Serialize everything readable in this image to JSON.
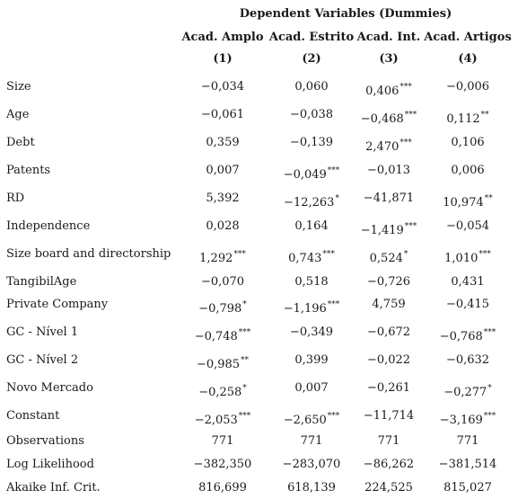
{
  "header": {
    "title": "Dependent Variables (Dummies)",
    "columns": [
      "Acad. Amplo",
      "Acad. Estrito",
      "Acad. Int.",
      "Acad. Artigos"
    ],
    "numbers": [
      "(1)",
      "(2)",
      "(3)",
      "(4)"
    ]
  },
  "rows": [
    {
      "label": "Size",
      "cells": [
        {
          "v": "−0,034",
          "s": ""
        },
        {
          "v": "0,060",
          "s": ""
        },
        {
          "v": "0,406",
          "s": "***"
        },
        {
          "v": "−0,006",
          "s": ""
        }
      ]
    },
    {
      "label": "Age",
      "cells": [
        {
          "v": "−0,061",
          "s": ""
        },
        {
          "v": "−0,038",
          "s": ""
        },
        {
          "v": "−0,468",
          "s": "***"
        },
        {
          "v": "0,112",
          "s": "**"
        }
      ]
    },
    {
      "label": "Debt",
      "cells": [
        {
          "v": "0,359",
          "s": ""
        },
        {
          "v": "−0,139",
          "s": ""
        },
        {
          "v": "2,470",
          "s": "***"
        },
        {
          "v": "0,106",
          "s": ""
        }
      ]
    },
    {
      "label": "Patents",
      "cells": [
        {
          "v": "0,007",
          "s": ""
        },
        {
          "v": "−0,049",
          "s": "***"
        },
        {
          "v": "−0,013",
          "s": ""
        },
        {
          "v": "0,006",
          "s": ""
        }
      ]
    },
    {
      "label": "RD",
      "cells": [
        {
          "v": "5,392",
          "s": ""
        },
        {
          "v": "−12,263",
          "s": "*"
        },
        {
          "v": "−41,871",
          "s": ""
        },
        {
          "v": "10,974",
          "s": "**"
        }
      ]
    },
    {
      "label": "Independence",
      "cells": [
        {
          "v": "0,028",
          "s": ""
        },
        {
          "v": "0,164",
          "s": ""
        },
        {
          "v": "−1,419",
          "s": "***"
        },
        {
          "v": "−0,054",
          "s": ""
        }
      ]
    },
    {
      "label": "Size board and directorship",
      "cells": [
        {
          "v": "1,292",
          "s": "***"
        },
        {
          "v": "0,743",
          "s": "***"
        },
        {
          "v": "0,524",
          "s": "*"
        },
        {
          "v": "1,010",
          "s": "***"
        }
      ]
    },
    {
      "label": "TangibilAge",
      "cells": [
        {
          "v": "−0,070",
          "s": ""
        },
        {
          "v": "0,518",
          "s": ""
        },
        {
          "v": "−0,726",
          "s": ""
        },
        {
          "v": "0,431",
          "s": ""
        }
      ]
    },
    {
      "label": "Private Company",
      "cells": [
        {
          "v": "−0,798",
          "s": "*"
        },
        {
          "v": "−1,196",
          "s": "***"
        },
        {
          "v": "4,759",
          "s": ""
        },
        {
          "v": "−0,415",
          "s": ""
        }
      ]
    },
    {
      "label": "GC - Nível 1",
      "cells": [
        {
          "v": "−0,748",
          "s": "***"
        },
        {
          "v": "−0,349",
          "s": ""
        },
        {
          "v": "−0,672",
          "s": ""
        },
        {
          "v": "−0,768",
          "s": "***"
        }
      ]
    },
    {
      "label": "GC - Nível 2",
      "cells": [
        {
          "v": "−0,985",
          "s": "**"
        },
        {
          "v": "0,399",
          "s": ""
        },
        {
          "v": "−0,022",
          "s": ""
        },
        {
          "v": "−0,632",
          "s": ""
        }
      ]
    },
    {
      "label": "Novo Mercado",
      "cells": [
        {
          "v": "−0,258",
          "s": "*"
        },
        {
          "v": "0,007",
          "s": ""
        },
        {
          "v": "−0,261",
          "s": ""
        },
        {
          "v": "−0,277",
          "s": "*"
        }
      ]
    },
    {
      "label": "Constant",
      "cells": [
        {
          "v": "−2,053",
          "s": "***"
        },
        {
          "v": "−2,650",
          "s": "***"
        },
        {
          "v": "−11,714",
          "s": ""
        },
        {
          "v": "−3,169",
          "s": "***"
        }
      ]
    },
    {
      "label": "Observations",
      "cells": [
        {
          "v": "771",
          "s": ""
        },
        {
          "v": "771",
          "s": ""
        },
        {
          "v": "771",
          "s": ""
        },
        {
          "v": "771",
          "s": ""
        }
      ]
    },
    {
      "label": "Log Likelihood",
      "cells": [
        {
          "v": "−382,350",
          "s": ""
        },
        {
          "v": "−283,070",
          "s": ""
        },
        {
          "v": "−86,262",
          "s": ""
        },
        {
          "v": "−381,514",
          "s": ""
        }
      ]
    },
    {
      "label": "Akaike Inf. Crit.",
      "cells": [
        {
          "v": "816,699",
          "s": ""
        },
        {
          "v": "618,139",
          "s": ""
        },
        {
          "v": "224,525",
          "s": ""
        },
        {
          "v": "815,027",
          "s": ""
        }
      ]
    }
  ]
}
